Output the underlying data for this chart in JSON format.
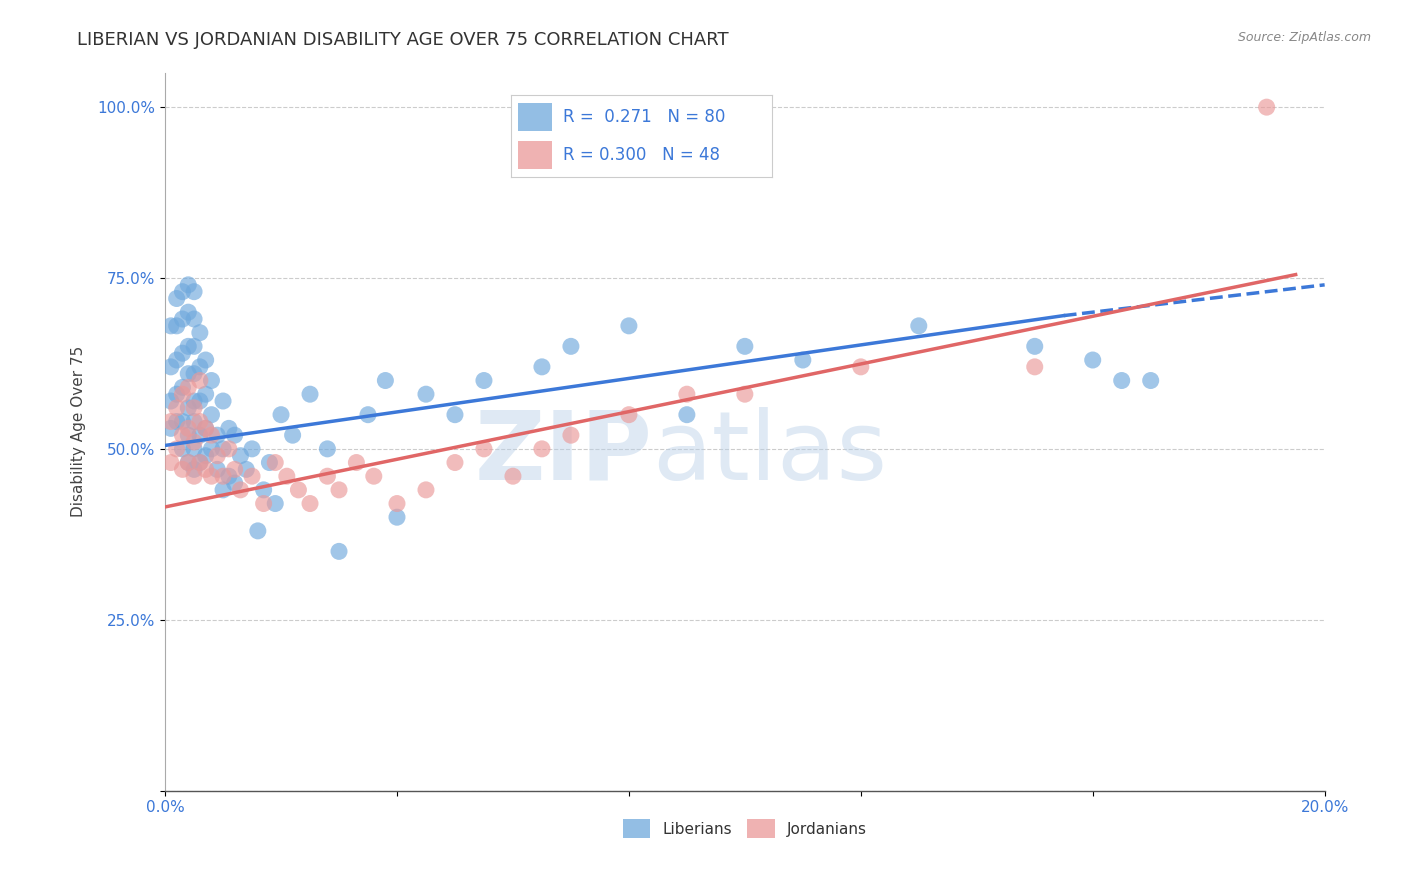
{
  "title": "LIBERIAN VS JORDANIAN DISABILITY AGE OVER 75 CORRELATION CHART",
  "source": "Source: ZipAtlas.com",
  "ylabel": "Disability Age Over 75",
  "liberian_R": 0.271,
  "liberian_N": 80,
  "jordanian_R": 0.3,
  "jordanian_N": 48,
  "x_min": 0.0,
  "x_max": 0.2,
  "y_min": 0.0,
  "y_max": 1.05,
  "x_ticks": [
    0.0,
    0.04,
    0.08,
    0.12,
    0.16,
    0.2
  ],
  "x_tick_labels": [
    "0.0%",
    "",
    "",
    "",
    "",
    "20.0%"
  ],
  "y_ticks": [
    0.0,
    0.25,
    0.5,
    0.75,
    1.0
  ],
  "y_tick_labels": [
    "",
    "25.0%",
    "50.0%",
    "75.0%",
    "100.0%"
  ],
  "liberian_color": "#6fa8dc",
  "jordanian_color": "#ea9999",
  "liberian_line_color": "#3c78d8",
  "jordanian_line_color": "#e06666",
  "grid_color": "#cccccc",
  "background_color": "#ffffff",
  "liberian_x": [
    0.001,
    0.001,
    0.001,
    0.001,
    0.002,
    0.002,
    0.002,
    0.002,
    0.002,
    0.003,
    0.003,
    0.003,
    0.003,
    0.003,
    0.003,
    0.004,
    0.004,
    0.004,
    0.004,
    0.004,
    0.004,
    0.004,
    0.005,
    0.005,
    0.005,
    0.005,
    0.005,
    0.005,
    0.005,
    0.005,
    0.006,
    0.006,
    0.006,
    0.006,
    0.006,
    0.007,
    0.007,
    0.007,
    0.007,
    0.008,
    0.008,
    0.008,
    0.009,
    0.009,
    0.01,
    0.01,
    0.01,
    0.011,
    0.011,
    0.012,
    0.012,
    0.013,
    0.014,
    0.015,
    0.016,
    0.017,
    0.018,
    0.019,
    0.02,
    0.022,
    0.025,
    0.028,
    0.03,
    0.035,
    0.038,
    0.04,
    0.045,
    0.05,
    0.055,
    0.065,
    0.07,
    0.08,
    0.09,
    0.1,
    0.11,
    0.13,
    0.15,
    0.16,
    0.165,
    0.17
  ],
  "liberian_y": [
    0.53,
    0.57,
    0.62,
    0.68,
    0.54,
    0.58,
    0.63,
    0.68,
    0.72,
    0.5,
    0.54,
    0.59,
    0.64,
    0.69,
    0.73,
    0.48,
    0.52,
    0.56,
    0.61,
    0.65,
    0.7,
    0.74,
    0.47,
    0.5,
    0.54,
    0.57,
    0.61,
    0.65,
    0.69,
    0.73,
    0.48,
    0.52,
    0.57,
    0.62,
    0.67,
    0.49,
    0.53,
    0.58,
    0.63,
    0.5,
    0.55,
    0.6,
    0.47,
    0.52,
    0.44,
    0.5,
    0.57,
    0.46,
    0.53,
    0.45,
    0.52,
    0.49,
    0.47,
    0.5,
    0.38,
    0.44,
    0.48,
    0.42,
    0.55,
    0.52,
    0.58,
    0.5,
    0.35,
    0.55,
    0.6,
    0.4,
    0.58,
    0.55,
    0.6,
    0.62,
    0.65,
    0.68,
    0.55,
    0.65,
    0.63,
    0.68,
    0.65,
    0.63,
    0.6,
    0.6
  ],
  "jordanian_x": [
    0.001,
    0.001,
    0.002,
    0.002,
    0.003,
    0.003,
    0.003,
    0.004,
    0.004,
    0.004,
    0.005,
    0.005,
    0.005,
    0.006,
    0.006,
    0.006,
    0.007,
    0.007,
    0.008,
    0.008,
    0.009,
    0.01,
    0.011,
    0.012,
    0.013,
    0.015,
    0.017,
    0.019,
    0.021,
    0.023,
    0.025,
    0.028,
    0.03,
    0.033,
    0.036,
    0.04,
    0.045,
    0.05,
    0.055,
    0.06,
    0.065,
    0.07,
    0.08,
    0.09,
    0.1,
    0.12,
    0.15,
    0.19
  ],
  "jordanian_y": [
    0.48,
    0.54,
    0.5,
    0.56,
    0.47,
    0.52,
    0.58,
    0.48,
    0.53,
    0.59,
    0.46,
    0.51,
    0.56,
    0.48,
    0.54,
    0.6,
    0.47,
    0.53,
    0.46,
    0.52,
    0.49,
    0.46,
    0.5,
    0.47,
    0.44,
    0.46,
    0.42,
    0.48,
    0.46,
    0.44,
    0.42,
    0.46,
    0.44,
    0.48,
    0.46,
    0.42,
    0.44,
    0.48,
    0.5,
    0.46,
    0.5,
    0.52,
    0.55,
    0.58,
    0.58,
    0.62,
    0.62,
    1.0
  ],
  "watermark_zip": "ZIP",
  "watermark_atlas": "atlas",
  "title_fontsize": 13,
  "axis_label_fontsize": 11,
  "tick_fontsize": 11,
  "legend_fontsize": 13
}
